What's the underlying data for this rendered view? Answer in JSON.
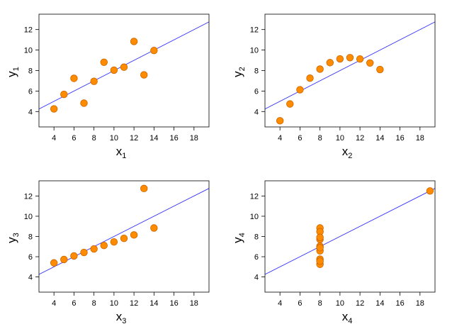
{
  "colors": {
    "point_fill": "#ff8c00",
    "point_stroke": "#c86400",
    "fit_line": "#3333ff",
    "frame": "#000000"
  },
  "chart_data": [
    {
      "type": "scatter",
      "xlabel": "x",
      "xlabel_sub": "1",
      "ylabel": "y",
      "ylabel_sub": "1",
      "xlim": [
        2.5,
        19.5
      ],
      "ylim": [
        2.5,
        13.5
      ],
      "xticks": [
        4,
        6,
        8,
        10,
        12,
        14,
        16,
        18
      ],
      "yticks": [
        4,
        6,
        8,
        10,
        12
      ],
      "x": [
        10,
        8,
        13,
        9,
        11,
        14,
        6,
        4,
        12,
        7,
        5
      ],
      "y": [
        8.04,
        6.95,
        7.58,
        8.81,
        8.33,
        9.96,
        7.24,
        4.26,
        10.84,
        4.82,
        5.68
      ],
      "fit": {
        "intercept": 3.0,
        "slope": 0.5
      }
    },
    {
      "type": "scatter",
      "xlabel": "x",
      "xlabel_sub": "2",
      "ylabel": "y",
      "ylabel_sub": "2",
      "xlim": [
        2.5,
        19.5
      ],
      "ylim": [
        2.5,
        13.5
      ],
      "xticks": [
        4,
        6,
        8,
        10,
        12,
        14,
        16,
        18
      ],
      "yticks": [
        4,
        6,
        8,
        10,
        12
      ],
      "x": [
        10,
        8,
        13,
        9,
        11,
        14,
        6,
        4,
        12,
        7,
        5
      ],
      "y": [
        9.14,
        8.14,
        8.74,
        8.77,
        9.26,
        8.1,
        6.13,
        3.1,
        9.13,
        7.26,
        4.74
      ],
      "fit": {
        "intercept": 3.0,
        "slope": 0.5
      }
    },
    {
      "type": "scatter",
      "xlabel": "x",
      "xlabel_sub": "3",
      "ylabel": "y",
      "ylabel_sub": "3",
      "xlim": [
        2.5,
        19.5
      ],
      "ylim": [
        2.5,
        13.5
      ],
      "xticks": [
        4,
        6,
        8,
        10,
        12,
        14,
        16,
        18
      ],
      "yticks": [
        4,
        6,
        8,
        10,
        12
      ],
      "x": [
        10,
        8,
        13,
        9,
        11,
        14,
        6,
        4,
        12,
        7,
        5
      ],
      "y": [
        7.46,
        6.77,
        12.74,
        7.11,
        7.81,
        8.84,
        6.08,
        5.39,
        8.15,
        6.42,
        5.73
      ],
      "fit": {
        "intercept": 3.0,
        "slope": 0.5
      }
    },
    {
      "type": "scatter",
      "xlabel": "x",
      "xlabel_sub": "4",
      "ylabel": "y",
      "ylabel_sub": "4",
      "xlim": [
        2.5,
        19.5
      ],
      "ylim": [
        2.5,
        13.5
      ],
      "xticks": [
        4,
        6,
        8,
        10,
        12,
        14,
        16,
        18
      ],
      "yticks": [
        4,
        6,
        8,
        10,
        12
      ],
      "x": [
        8,
        8,
        8,
        8,
        8,
        8,
        8,
        19,
        8,
        8,
        8
      ],
      "y": [
        6.58,
        5.76,
        7.71,
        8.84,
        8.47,
        7.04,
        5.25,
        12.5,
        5.56,
        7.91,
        6.89
      ],
      "fit": {
        "intercept": 3.0,
        "slope": 0.5
      }
    }
  ]
}
